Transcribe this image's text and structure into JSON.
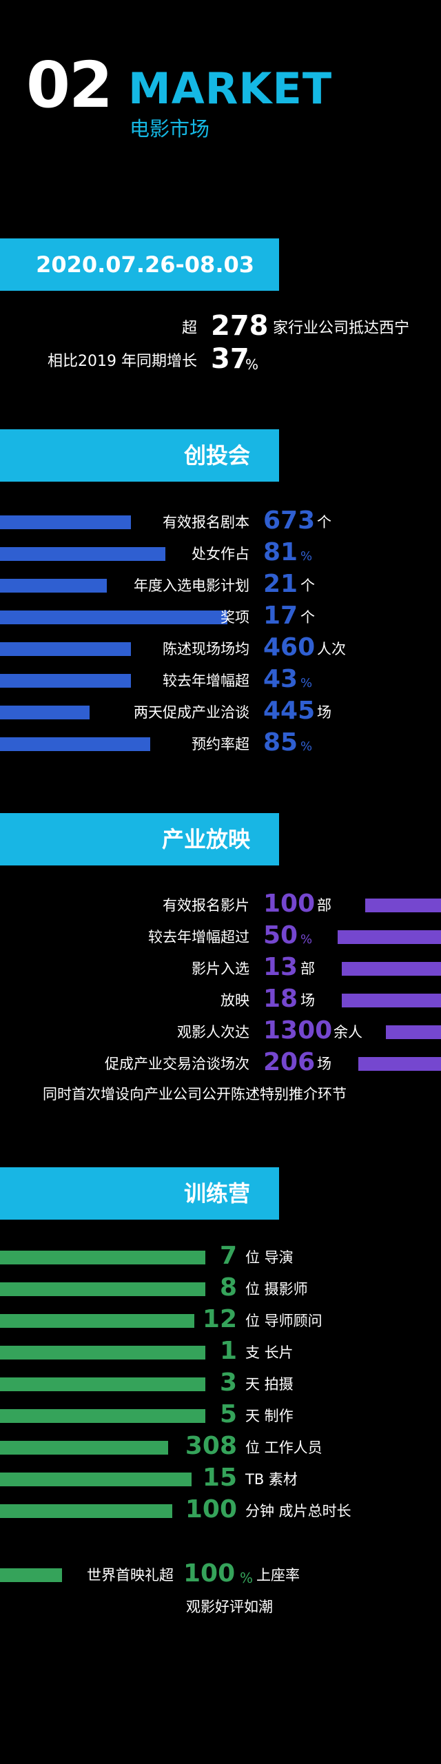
{
  "header": {
    "number": "02",
    "title": "MARKET",
    "subtitle": "电影市场"
  },
  "date_section": {
    "date": "2020.07.26-08.03",
    "stat1": {
      "prefix": "超",
      "value": "278",
      "suffix": "家行业公司抵达西宁"
    },
    "stat2": {
      "prefix": "相比2019 年同期增长",
      "value": "37",
      "unit": "%"
    }
  },
  "chuangtou": {
    "title": "创投会",
    "rows": [
      {
        "label": "有效报名剧本",
        "value": "673",
        "unit": "个"
      },
      {
        "label": "处女作占",
        "value": "81",
        "unit": "%"
      },
      {
        "label": "年度入选电影计划",
        "value": "21",
        "unit": "个"
      },
      {
        "label": "奖项",
        "value": "17",
        "unit": "个"
      },
      {
        "label": "陈述现场场均",
        "value": "460",
        "unit": "人次"
      },
      {
        "label": "较去年增幅超",
        "value": "43",
        "unit": "%"
      },
      {
        "label": "两天促成产业洽谈",
        "value": "445",
        "unit": "场"
      },
      {
        "label": "预约率超",
        "value": "85",
        "unit": "%"
      }
    ]
  },
  "chanye": {
    "title": "产业放映",
    "rows": [
      {
        "label": "有效报名影片",
        "value": "100",
        "unit": "部"
      },
      {
        "label": "较去年增幅超过",
        "value": "50",
        "unit": "%"
      },
      {
        "label": "影片入选",
        "value": "13",
        "unit": "部"
      },
      {
        "label": "放映",
        "value": "18",
        "unit": "场"
      },
      {
        "label": "观影人次达",
        "value": "1300",
        "unit": "余人"
      },
      {
        "label": "促成产业交易洽谈场次",
        "value": "206",
        "unit": "场"
      }
    ],
    "note": "同时首次增设向产业公司公开陈述特别推介环节"
  },
  "xunlian": {
    "title": "训练营",
    "rows": [
      {
        "value": "7",
        "unit": "位 导演"
      },
      {
        "value": "8",
        "unit": "位 摄影师"
      },
      {
        "value": "12",
        "unit": "位 导师顾问"
      },
      {
        "value": "1",
        "unit": "支 长片"
      },
      {
        "value": "3",
        "unit": "天 拍摄"
      },
      {
        "value": "5",
        "unit": "天 制作"
      },
      {
        "value": "308",
        "unit": "位 工作人员"
      },
      {
        "value": "15",
        "unit": "TB 素材"
      },
      {
        "value": "100",
        "unit": "分钟 成片总时长"
      }
    ],
    "final": {
      "label": "世界首映礼超",
      "value": "100",
      "unit": "%",
      "suffix": "上座率"
    },
    "note": "观影好评如潮"
  },
  "colors": {
    "cyan": "#18b6e4",
    "blue": "#2f5fd1",
    "purple": "#7547cf",
    "green": "#35a35a"
  }
}
